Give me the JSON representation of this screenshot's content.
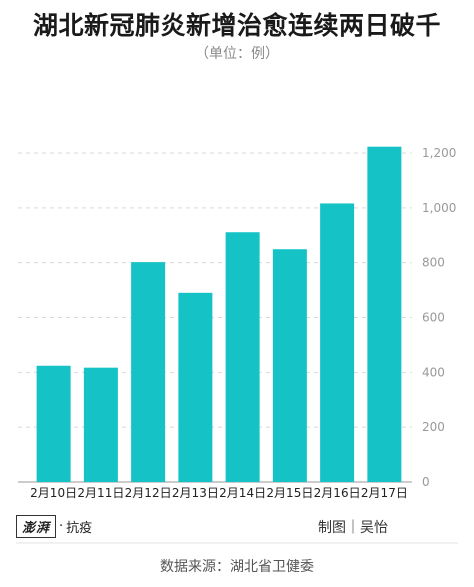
{
  "chart_data": {
    "type": "bar",
    "title": "湖北新冠肺炎新增治愈连续两日破千",
    "unit_note": "（单位：例）",
    "categories": [
      "2月10日",
      "2月11日",
      "2月12日",
      "2月13日",
      "2月14日",
      "2月15日",
      "2月16日",
      "2月17日"
    ],
    "values": [
      424,
      417,
      802,
      690,
      911,
      849,
      1016,
      1223
    ],
    "ylim": [
      0,
      1200
    ],
    "y_ticks": [
      "0",
      "200",
      "400",
      "600",
      "800",
      "1,000",
      "1,200"
    ],
    "y_axis_side": "right",
    "grid": true,
    "bar_color": "#15c3c6"
  },
  "branding": {
    "logo_text": "澎湃",
    "logo_sub": "抗疫",
    "credit": "制图｜吴怡"
  },
  "source": "数据来源：湖北省卫健委"
}
